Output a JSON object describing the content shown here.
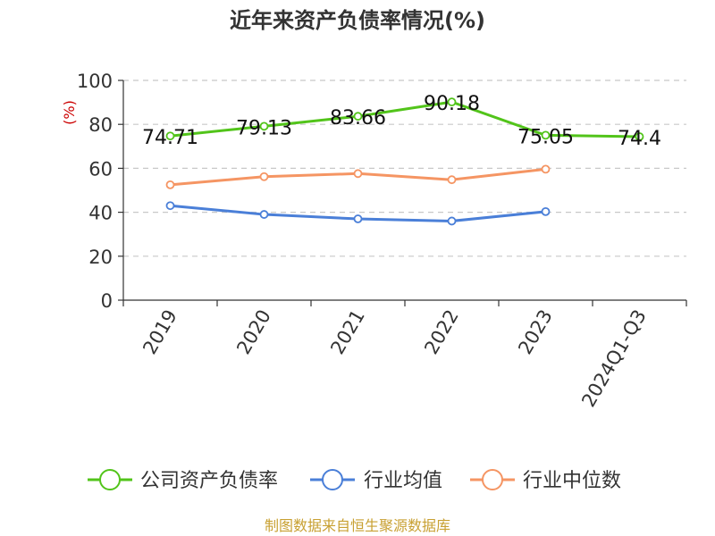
{
  "chart_data": {
    "type": "line",
    "title": "近年来资产负债率情况(%)",
    "ylabel": "(%)",
    "categories": [
      "2019",
      "2020",
      "2021",
      "2022",
      "2023",
      "2024Q1-Q3"
    ],
    "ylim": [
      0,
      100
    ],
    "yticks": [
      0,
      20,
      40,
      60,
      80,
      100
    ],
    "grid": true,
    "legend_position": "bottom",
    "series": [
      {
        "name": "公司资产负债率",
        "color": "#52c41a",
        "values": [
          74.71,
          79.13,
          83.66,
          90.18,
          75.05,
          74.4
        ],
        "labels": [
          "74.71",
          "79.13",
          "83.66",
          "90.18",
          "75.05",
          "74.4"
        ]
      },
      {
        "name": "行业均值",
        "color": "#4a7fd8",
        "values": [
          43.0,
          39.0,
          37.0,
          36.0,
          40.3,
          null
        ]
      },
      {
        "name": "行业中位数",
        "color": "#f59563",
        "values": [
          52.5,
          56.2,
          57.6,
          54.8,
          59.6,
          null
        ]
      }
    ]
  },
  "source": "制图数据来自恒生聚源数据库"
}
